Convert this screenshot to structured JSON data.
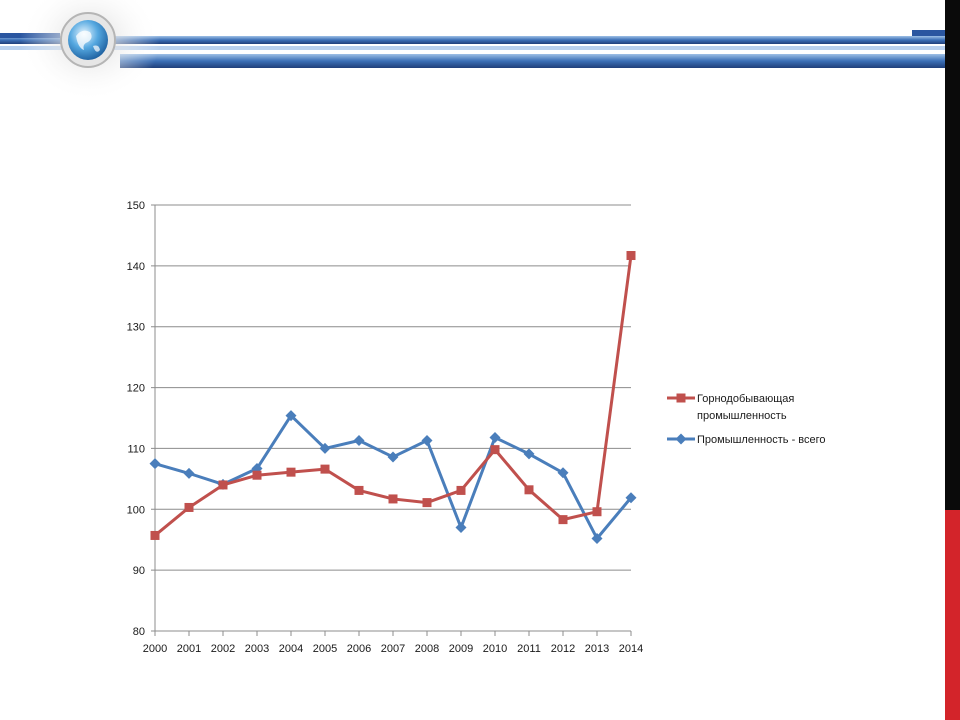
{
  "slide": {
    "colors": {
      "header_blue": "#3b6fb6",
      "header_dark": "#1f3f7a",
      "right_bar_black": "#0a0a0a",
      "right_bar_red": "#d3242a"
    },
    "logo_icon": "globe-icon"
  },
  "chart_data": {
    "type": "line",
    "title": "",
    "xlabel": "",
    "ylabel": "",
    "x": [
      "2000",
      "2001",
      "2002",
      "2003",
      "2004",
      "2005",
      "2006",
      "2007",
      "2008",
      "2009",
      "2010",
      "2011",
      "2012",
      "2013",
      "2014"
    ],
    "ylim": [
      80,
      150
    ],
    "yticks": [
      "80",
      "90",
      "100",
      "110",
      "120",
      "130",
      "140",
      "150"
    ],
    "grid": true,
    "legend_position": "right",
    "series": [
      {
        "name": "Горнодобывающая промышленность",
        "name_lines": [
          "Горнодобывающая",
          "промышленность"
        ],
        "marker": "square",
        "color": "#c0504d",
        "values": [
          95.7,
          100.3,
          104.0,
          105.6,
          106.1,
          106.6,
          103.1,
          101.7,
          101.1,
          103.1,
          109.8,
          103.2,
          98.3,
          99.6,
          141.7
        ]
      },
      {
        "name": "Промышленность - всего",
        "name_lines": [
          "Промышленность  - всего"
        ],
        "marker": "diamond",
        "color": "#4a7ebb",
        "values": [
          107.5,
          105.9,
          104.1,
          106.7,
          115.4,
          110.0,
          111.3,
          108.6,
          111.3,
          97.0,
          111.8,
          109.1,
          106.0,
          95.2,
          101.9
        ]
      }
    ]
  }
}
